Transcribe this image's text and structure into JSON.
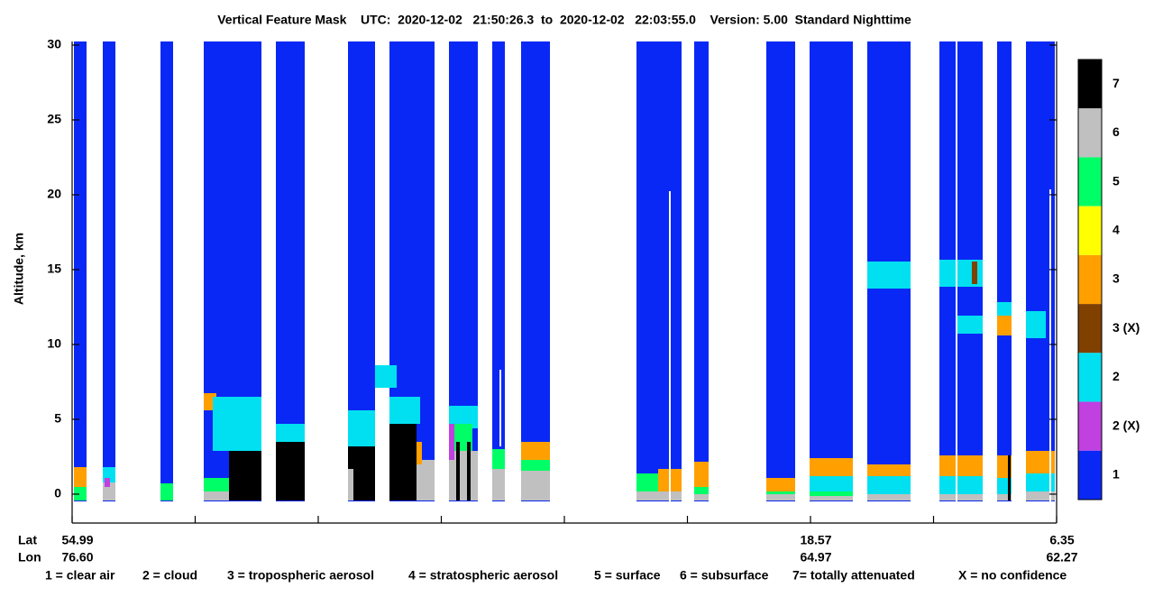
{
  "chart_data": {
    "type": "feature-mask",
    "title": "Vertical Feature Mask    UTC:  2020-12-02   21:50:26.3  to  2020-12-02   22:03:55.0    Version: 5.00  Standard Nighttime",
    "y_label": "Altitude, km",
    "ylim": [
      -1.93,
      30.24
    ],
    "yticks": [
      0,
      5,
      10,
      15,
      20,
      25,
      30
    ],
    "x_row_labels": [
      "Lat",
      "Lon"
    ],
    "lat": [
      "54.99",
      null,
      null,
      null,
      null,
      null,
      "18.57",
      null,
      "6.35"
    ],
    "lon": [
      "76.60",
      null,
      null,
      null,
      null,
      null,
      "64.97",
      null,
      "62.27"
    ],
    "colorbar": [
      {
        "label": "7",
        "color": "#000000"
      },
      {
        "label": "6",
        "color": "#c0c0c0"
      },
      {
        "label": "5",
        "color": "#00ff66"
      },
      {
        "label": "4",
        "color": "#ffff00"
      },
      {
        "label": "3",
        "color": "#ffa000"
      },
      {
        "label": "3 (X)",
        "color": "#804000"
      },
      {
        "label": "2",
        "color": "#00e0f0"
      },
      {
        "label": "2 (X)",
        "color": "#c040e0"
      },
      {
        "label": "1",
        "color": "#0a28f5"
      }
    ],
    "legend": [
      "1 = clear air",
      "2 = cloud",
      "3 = tropospheric aerosol",
      "4 = stratospheric aerosol",
      "5 = surface",
      "6 = subsurface",
      "7= totally attenuated",
      "X = no confidence"
    ]
  }
}
